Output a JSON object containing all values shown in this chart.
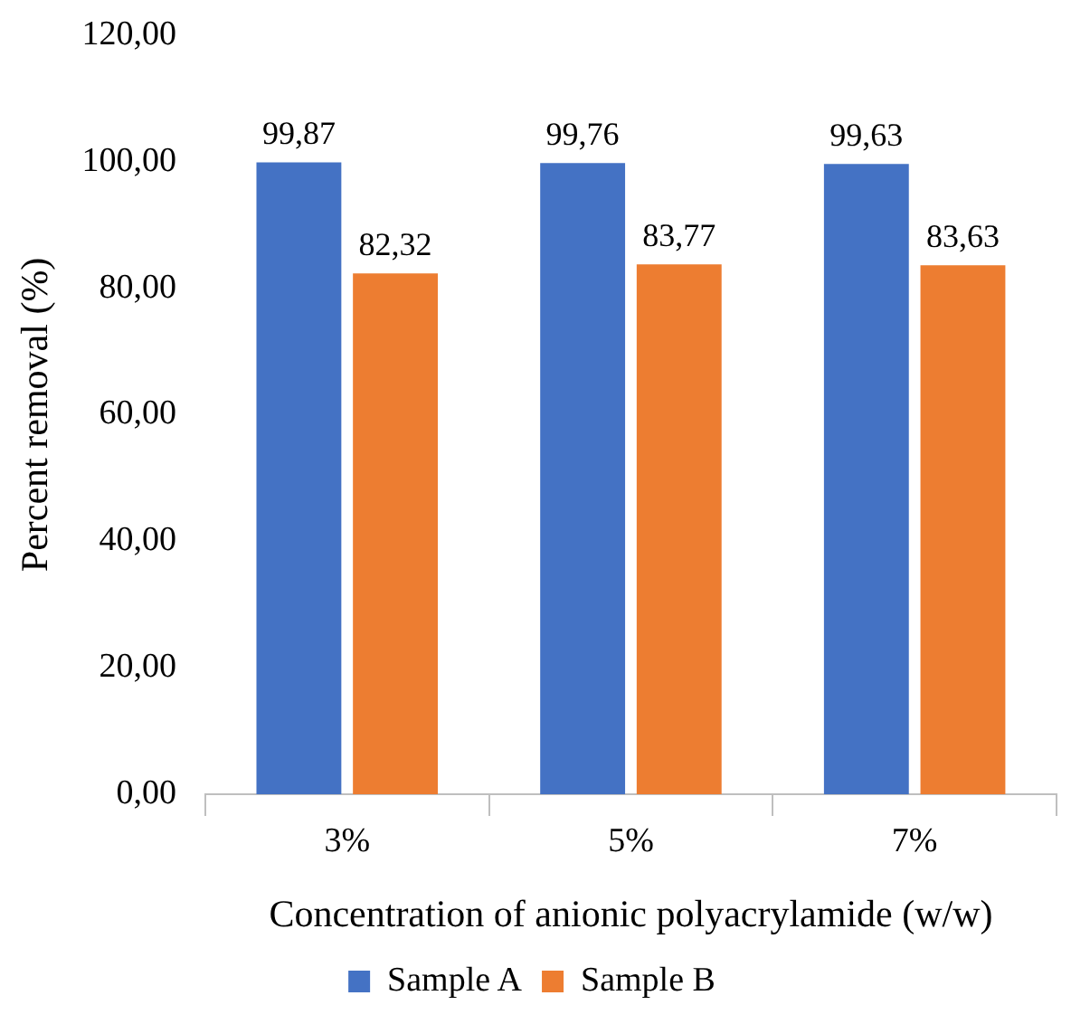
{
  "chart_data": {
    "type": "bar",
    "xlabel": "Concentration of anionic polyacrylamide (w/w)",
    "ylabel": "Percent removal (%)",
    "categories": [
      "3%",
      "5%",
      "7%"
    ],
    "series": [
      {
        "name": "Sample A",
        "color": "#4472c4",
        "values": [
          99.87,
          99.76,
          99.63
        ],
        "value_labels": [
          "99,87",
          "99,76",
          "99,63"
        ]
      },
      {
        "name": "Sample B",
        "color": "#ed7d31",
        "values": [
          82.32,
          83.77,
          83.63
        ],
        "value_labels": [
          "82,32",
          "83,77",
          "83,63"
        ]
      }
    ],
    "ylim": [
      0,
      120
    ],
    "yticks": [
      {
        "value": 0,
        "label": "0,00"
      },
      {
        "value": 20,
        "label": "20,00"
      },
      {
        "value": 40,
        "label": "40,00"
      },
      {
        "value": 60,
        "label": "60,00"
      },
      {
        "value": 80,
        "label": "80,00"
      },
      {
        "value": 100,
        "label": "100,00"
      },
      {
        "value": 120,
        "label": "120,00"
      }
    ],
    "grid": false,
    "legend": "bottom"
  }
}
